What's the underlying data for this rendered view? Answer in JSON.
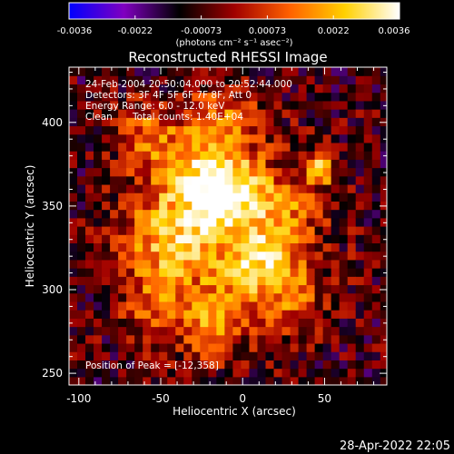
{
  "chart_data": {
    "type": "heatmap",
    "title": "Reconstructed RHESSI Image",
    "xlabel": "Heliocentric X (arcsec)",
    "ylabel": "Heliocentric Y (arcsec)",
    "xlim": [
      -106,
      88
    ],
    "ylim": [
      243,
      433
    ],
    "x_ticks": [
      -100,
      -50,
      0,
      50
    ],
    "y_ticks": [
      250,
      300,
      350,
      400
    ],
    "colorbar": {
      "min": -0.0036,
      "max": 0.0036,
      "ticks": [
        "-0.0036",
        "-0.0022",
        "-0.00073",
        "0.00073",
        "0.0022",
        "0.0036"
      ],
      "unit_label": "(photons cm⁻² s⁻¹ asec⁻²)",
      "colors": [
        "#0000ff",
        "#8000c0",
        "#000000",
        "#a00000",
        "#ff6000",
        "#ffd000",
        "#ffffff"
      ]
    },
    "annotations": {
      "line1": "24-Feb-2004 20:50:04.000 to 20:52:44.000",
      "line2": "Detectors: 3F 4F 5F 6F 7F 8F, Att 0",
      "line3": "Energy Range: 6.0 - 12.0 keV",
      "line4_left": "Clean",
      "line4_right": "Total counts: 1.40E+04",
      "peak": "Position of Peak = [-12,358]"
    },
    "sources": [
      {
        "x": -12,
        "y": 358,
        "amp": 0.0036,
        "sigma": 14
      },
      {
        "x": -45,
        "y": 330,
        "amp": 0.0022,
        "sigma": 18
      },
      {
        "x": 10,
        "y": 318,
        "amp": 0.0024,
        "sigma": 16
      },
      {
        "x": -30,
        "y": 375,
        "amp": 0.0018,
        "sigma": 20
      },
      {
        "x": 48,
        "y": 372,
        "amp": 0.003,
        "sigma": 6
      },
      {
        "x": -55,
        "y": 290,
        "amp": 0.0016,
        "sigma": 14
      },
      {
        "x": -20,
        "y": 280,
        "amp": 0.0018,
        "sigma": 14
      },
      {
        "x": 25,
        "y": 350,
        "amp": 0.0014,
        "sigma": 14
      },
      {
        "x": -60,
        "y": 395,
        "amp": 0.0016,
        "sigma": 12
      },
      {
        "x": 30,
        "y": 295,
        "amp": 0.0012,
        "sigma": 14
      },
      {
        "x": -10,
        "y": 405,
        "amp": 0.0014,
        "sigma": 14
      }
    ]
  },
  "footer": {
    "timestamp": "28-Apr-2022 22:05"
  }
}
